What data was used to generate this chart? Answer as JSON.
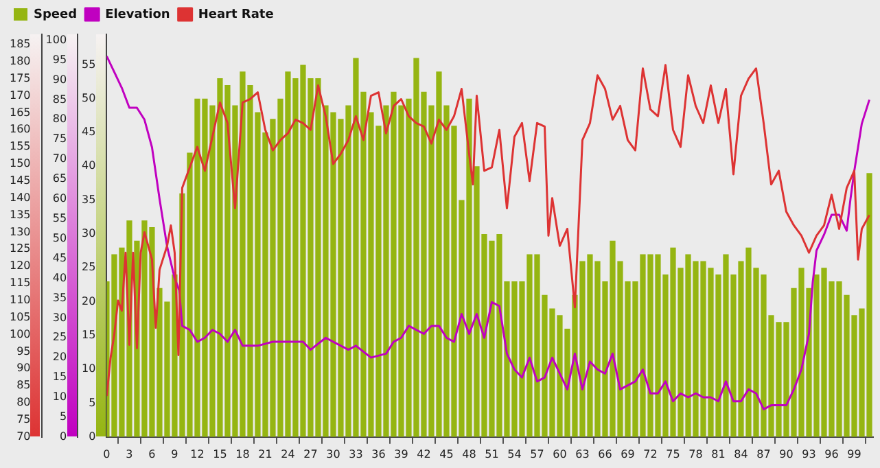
{
  "chart_data": {
    "type": "bar",
    "legend": "top left",
    "grid": false,
    "marker": "none",
    "line_style": "solid",
    "xlim": [
      0,
      101.5
    ],
    "xticks": [
      0,
      3,
      6,
      9,
      12,
      15,
      18,
      21,
      24,
      27,
      30,
      33,
      36,
      39,
      42,
      45,
      48,
      51,
      54,
      57,
      60,
      63,
      66,
      69,
      72,
      75,
      78,
      81,
      84,
      87,
      90,
      93,
      96,
      99
    ],
    "ylim": [
      0,
      59.5
    ],
    "yticks": [
      0,
      5,
      10,
      15,
      20,
      25,
      30,
      35,
      40,
      45,
      50,
      55
    ],
    "y2lim": [
      0,
      101.5
    ],
    "y2ticks": [
      0,
      5,
      10,
      15,
      20,
      25,
      30,
      35,
      40,
      45,
      50,
      55,
      60,
      65,
      70,
      75,
      80,
      85,
      90,
      95,
      100
    ],
    "y3lim": [
      70,
      188
    ],
    "y3ticks": [
      70,
      75,
      80,
      85,
      90,
      95,
      100,
      105,
      110,
      115,
      120,
      125,
      130,
      135,
      140,
      145,
      150,
      155,
      160,
      165,
      170,
      175,
      180,
      185
    ],
    "series": [
      {
        "name": "Speed",
        "color": "#95b512",
        "axis": "y",
        "x": [
          0,
          1,
          2,
          3,
          4,
          5,
          6,
          7,
          8,
          9,
          10,
          11,
          12,
          13,
          14,
          15,
          16,
          17,
          18,
          19,
          20,
          21,
          22,
          23,
          24,
          25,
          26,
          27,
          28,
          29,
          30,
          31,
          32,
          33,
          34,
          35,
          36,
          37,
          38,
          39,
          40,
          41,
          42,
          43,
          44,
          45,
          46,
          47,
          48,
          49,
          50,
          51,
          52,
          53,
          54,
          55,
          56,
          57,
          58,
          59,
          60,
          61,
          62,
          63,
          64,
          65,
          66,
          67,
          68,
          69,
          70,
          71,
          72,
          73,
          74,
          75,
          76,
          77,
          78,
          79,
          80,
          81,
          82,
          83,
          84,
          85,
          86,
          87,
          88,
          89,
          90,
          91,
          92,
          93,
          94,
          95,
          96,
          97,
          98,
          99,
          100,
          101
        ],
        "values": [
          23,
          27,
          28,
          32,
          29,
          32,
          31,
          22,
          20,
          24,
          36,
          42,
          50,
          50,
          49,
          53,
          52,
          49,
          54,
          52,
          48,
          45,
          47,
          50,
          54,
          53,
          55,
          53,
          53,
          49,
          48,
          47,
          49,
          56,
          51,
          48,
          46,
          49,
          51,
          49,
          50,
          56,
          51,
          49,
          54,
          49,
          46,
          35,
          50,
          40,
          30,
          29,
          30,
          23,
          23,
          23,
          27,
          27,
          21,
          19,
          18,
          16,
          21,
          26,
          27,
          26,
          23,
          29,
          26,
          23,
          23,
          27,
          27,
          27,
          24,
          28,
          25,
          27,
          26,
          26,
          25,
          24,
          27,
          24,
          26,
          28,
          25,
          24,
          18,
          17,
          17,
          22,
          25,
          22,
          24,
          25,
          23,
          23,
          21,
          18,
          19,
          39
        ]
      },
      {
        "name": "Elevation",
        "type": "line",
        "color": "#c000c0",
        "axis": "y2",
        "x": [
          0,
          1,
          2,
          3,
          4,
          5,
          6,
          7,
          8,
          9,
          9.6,
          10,
          11,
          12,
          13,
          14,
          15,
          16,
          17,
          18,
          20,
          22,
          24,
          26,
          27,
          29,
          31,
          32,
          33,
          35,
          37,
          38,
          39,
          40,
          42,
          43,
          44,
          45,
          46,
          47,
          48,
          49,
          50,
          51,
          52,
          53,
          54,
          55,
          56,
          57,
          58,
          59,
          60,
          61,
          62,
          63,
          64,
          65,
          66,
          67,
          68,
          69,
          70,
          71,
          72,
          73,
          74,
          75,
          76,
          77,
          78,
          79,
          80,
          81,
          82,
          83,
          84,
          85,
          86,
          87,
          88,
          89,
          90,
          91,
          92,
          93,
          93.5,
          94,
          95,
          96,
          97,
          98,
          98.5,
          99,
          100,
          101
        ],
        "values": [
          96,
          92,
          88,
          83,
          83,
          80,
          73,
          60,
          48,
          40,
          37,
          28,
          27,
          24,
          25,
          27,
          26,
          24,
          27,
          23,
          23,
          24,
          24,
          24,
          22,
          25,
          23,
          22,
          23,
          20,
          21,
          24,
          25,
          28,
          26,
          28,
          28,
          25,
          24,
          31,
          26,
          31,
          25,
          34,
          33,
          21,
          17,
          15,
          20,
          14,
          15,
          20,
          16,
          12,
          21,
          12,
          19,
          17,
          16,
          21,
          12,
          13,
          14,
          17,
          11,
          11,
          14,
          9,
          11,
          10,
          11,
          10,
          10,
          9,
          14,
          9,
          9,
          12,
          11,
          7,
          8,
          8,
          8,
          12,
          17,
          26,
          39,
          47,
          51,
          56,
          56,
          52,
          60,
          67,
          79,
          85
        ]
      },
      {
        "name": "Heart Rate",
        "type": "line",
        "color": "#dd3333",
        "axis": "y3",
        "x": [
          0,
          0.5,
          1,
          1.5,
          2,
          2.5,
          3,
          3.5,
          4,
          4.5,
          5,
          6,
          6.5,
          7,
          8,
          8.5,
          9,
          9.5,
          10,
          11,
          12,
          13,
          14,
          15,
          16,
          17,
          18,
          19,
          20,
          21,
          22,
          23,
          24,
          25,
          26,
          27,
          28,
          29,
          30,
          31,
          32,
          33,
          34,
          35,
          36,
          37,
          38,
          39,
          40,
          41,
          42,
          43,
          44,
          45,
          46,
          47,
          48,
          48.5,
          49,
          50,
          51,
          52,
          53,
          54,
          55,
          56,
          57,
          58,
          58.5,
          59,
          60,
          61,
          62,
          63,
          64,
          65,
          66,
          67,
          68,
          69,
          70,
          71,
          72,
          73,
          74,
          75,
          76,
          77,
          78,
          79,
          80,
          81,
          82,
          83,
          84,
          85,
          86,
          87,
          88,
          89,
          90,
          91,
          92,
          93,
          94,
          95,
          96,
          97,
          98,
          99,
          99.5,
          100,
          101
        ],
        "values": [
          82,
          93,
          100,
          110,
          107,
          124,
          97,
          124,
          96,
          124,
          130,
          122,
          102,
          119,
          126,
          132,
          124,
          94,
          143,
          149,
          155,
          148,
          158,
          168,
          162,
          137,
          168,
          169,
          171,
          160,
          154,
          157,
          159,
          163,
          162,
          160,
          173,
          164,
          150,
          153,
          157,
          164,
          157,
          170,
          171,
          159,
          167,
          169,
          164,
          162,
          161,
          156,
          163,
          160,
          164,
          172,
          153,
          144,
          170,
          148,
          149,
          160,
          137,
          158,
          162,
          145,
          162,
          161,
          129,
          140,
          126,
          131,
          108,
          157,
          162,
          176,
          172,
          163,
          167,
          157,
          154,
          178,
          166,
          164,
          179,
          160,
          155,
          176,
          167,
          162,
          173,
          162,
          172,
          147,
          170,
          175,
          178,
          162,
          144,
          148,
          136,
          132,
          129,
          124,
          129,
          132,
          141,
          131,
          143,
          148,
          122,
          131,
          135
        ]
      }
    ]
  }
}
